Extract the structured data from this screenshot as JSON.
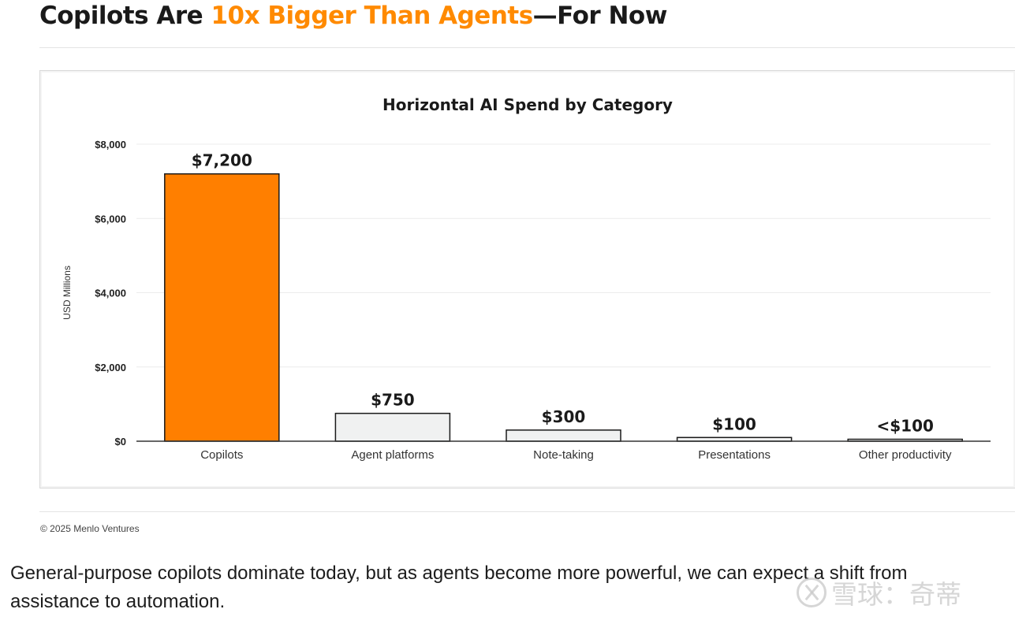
{
  "headline": {
    "part1": "Copilots Are ",
    "accent": "10x Bigger Than Agents",
    "part2": "—For Now"
  },
  "colors": {
    "accent": "#ff8a00",
    "bar_highlight": "#ff7f00",
    "bar_other": "#f0f1f1",
    "gridline": "#ececec"
  },
  "chart_data": {
    "type": "bar",
    "title": "Horizontal AI Spend by Category",
    "ylabel": "USD Millions",
    "xlabel": "",
    "ylim": [
      0,
      8000
    ],
    "yticks": [
      0,
      2000,
      4000,
      6000,
      8000
    ],
    "ytick_labels": [
      "$0",
      "$2,000",
      "$4,000",
      "$6,000",
      "$8,000"
    ],
    "categories": [
      "Copilots",
      "Agent platforms",
      "Note-taking",
      "Presentations",
      "Other productivity"
    ],
    "values": [
      7200,
      750,
      300,
      100,
      50
    ],
    "data_labels": [
      "$7,200",
      "$750",
      "$300",
      "$100",
      "<$100"
    ],
    "highlight_index": 0,
    "grid": true,
    "legend": "none"
  },
  "footer": {
    "copyright": "© 2025 Menlo Ventures"
  },
  "caption": "General-purpose copilots dominate today, but as agents become more powerful, we can expect a shift from assistance to automation.",
  "watermark": {
    "text": "雪球：奇蒂",
    "icon": "xueqiu-logo-icon"
  }
}
